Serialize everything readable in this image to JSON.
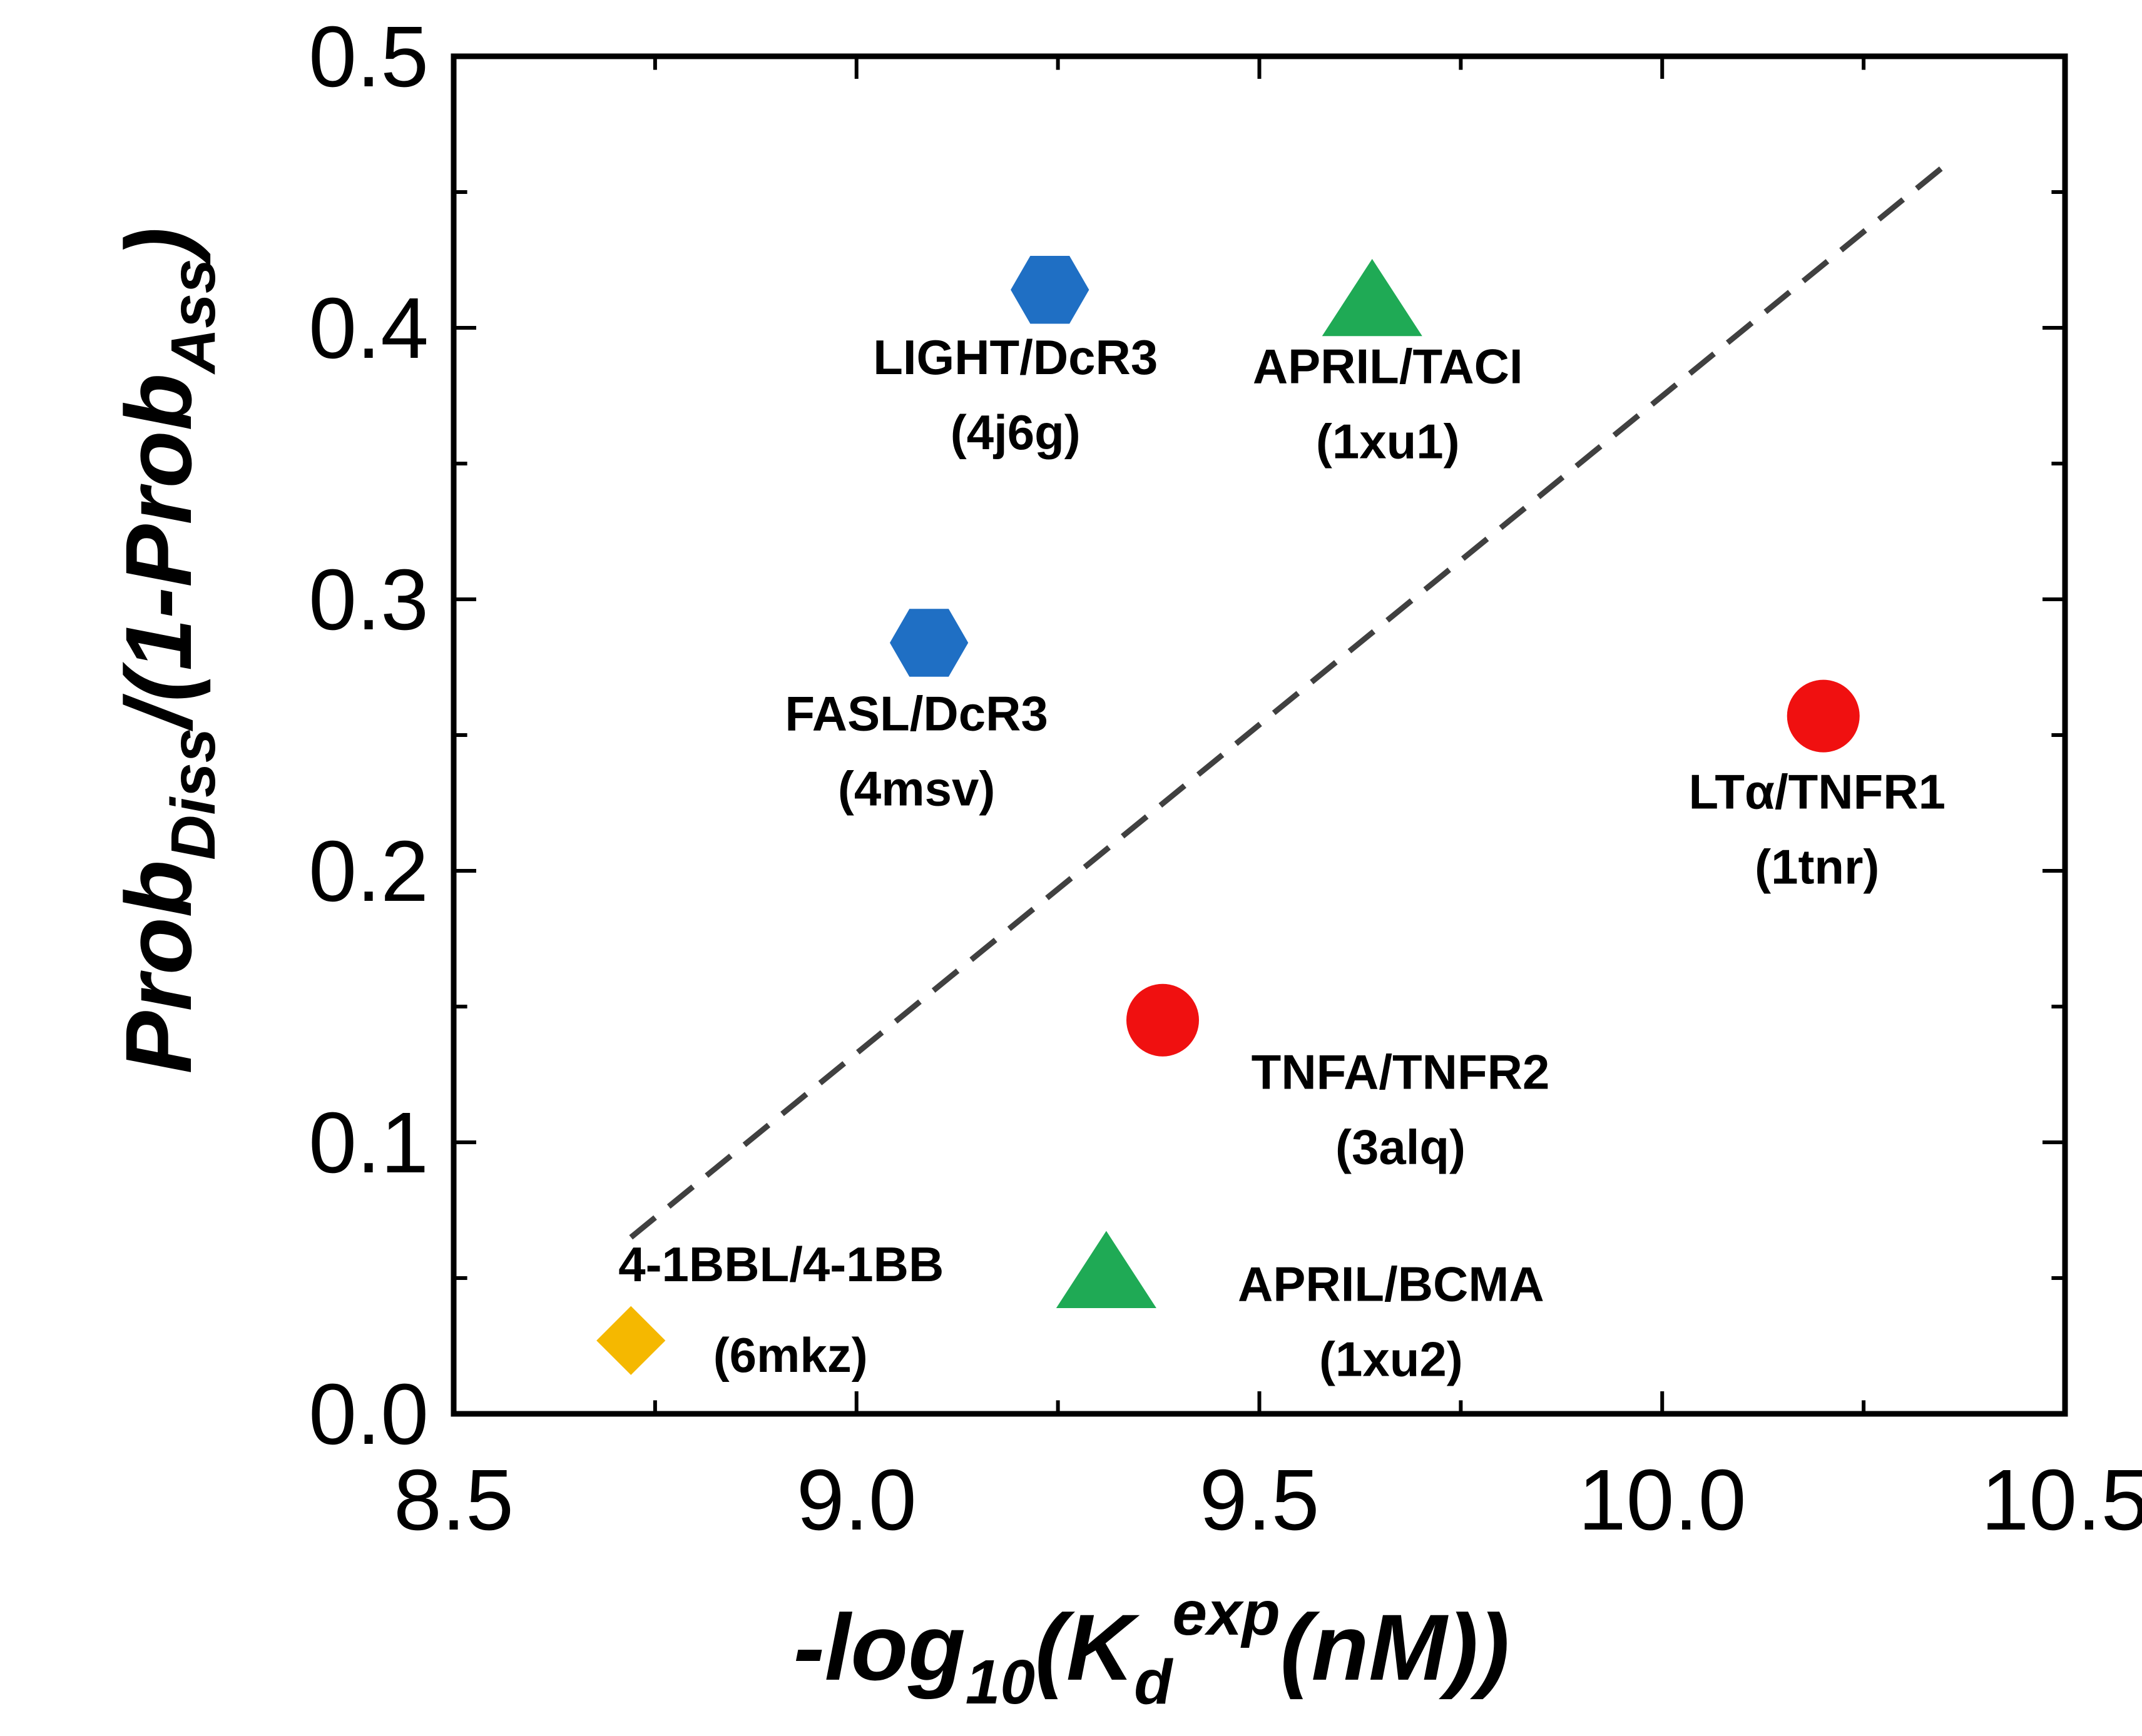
{
  "chart_data": {
    "type": "scatter",
    "xlabel": {
      "prefix": "-log",
      "sub": "10",
      "open": "(K",
      "k_sub": "d",
      "k_sup": "exp",
      "suffix": "(nM))"
    },
    "ylabel": {
      "prob": "Prob",
      "diss": "Diss",
      "mid": "/(1-Prob",
      "ass": "Ass",
      "close": ")"
    },
    "xlim": [
      8.5,
      10.5
    ],
    "ylim": [
      0.0,
      0.5
    ],
    "x_ticks": [
      8.5,
      9.0,
      9.5,
      10.0,
      10.5
    ],
    "x_tick_labels": [
      "8.5",
      "9.0",
      "9.5",
      "10.0",
      "10.5"
    ],
    "y_ticks": [
      0.0,
      0.1,
      0.2,
      0.3,
      0.4,
      0.5
    ],
    "y_tick_labels": [
      "0.0",
      "0.1",
      "0.2",
      "0.3",
      "0.4",
      "0.5"
    ],
    "fit_line": {
      "style": "dashed",
      "color": "#404040",
      "x": [
        8.72,
        10.36
      ],
      "y": [
        0.065,
        0.462
      ]
    },
    "points": [
      {
        "name": "LIGHT/DcR3",
        "pdb": "(4j6g)",
        "x": 9.24,
        "y": 0.414,
        "marker": "hexagon",
        "color": "#1f6fc4"
      },
      {
        "name": "FASL/DcR3",
        "pdb": "(4msv)",
        "x": 9.09,
        "y": 0.284,
        "marker": "hexagon",
        "color": "#1f6fc4"
      },
      {
        "name": "APRIL/TACI",
        "pdb": "(1xu1)",
        "x": 9.64,
        "y": 0.41,
        "marker": "triangle",
        "color": "#1faa55"
      },
      {
        "name": "LTα/TNFR1",
        "pdb": "(1tnr)",
        "x": 10.2,
        "y": 0.257,
        "marker": "circle",
        "color": "#f01010"
      },
      {
        "name": "TNFA/TNFR2",
        "pdb": "(3alq)",
        "x": 9.38,
        "y": 0.145,
        "marker": "circle",
        "color": "#f01010"
      },
      {
        "name": "APRIL/BCMA",
        "pdb": "(1xu2)",
        "x": 9.31,
        "y": 0.052,
        "marker": "triangle",
        "color": "#1faa55"
      },
      {
        "name": "4-1BBL/4-1BB",
        "pdb": "(6mkz)",
        "x": 8.72,
        "y": 0.027,
        "marker": "diamond",
        "color": "#f5b800"
      }
    ]
  }
}
